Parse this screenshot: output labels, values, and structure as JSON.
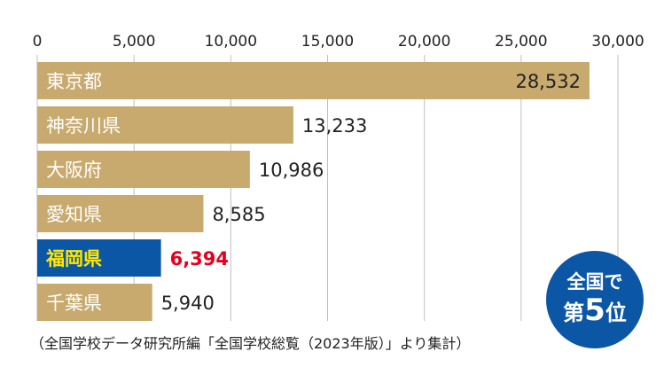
{
  "chart_data": {
    "type": "bar",
    "orientation": "horizontal",
    "categories": [
      "東京都",
      "神奈川県",
      "大阪府",
      "愛知県",
      "福岡県",
      "千葉県"
    ],
    "values": [
      28532,
      13233,
      10986,
      8585,
      6394,
      5940
    ],
    "value_labels": [
      "28,532",
      "13,233",
      "10,986",
      "8,585",
      "6,394",
      "5,940"
    ],
    "highlight_index": 4,
    "xlim": [
      0,
      30000
    ],
    "xticks": [
      0,
      5000,
      10000,
      15000,
      20000,
      25000,
      30000
    ],
    "xtick_labels": [
      "0",
      "5,000",
      "10,000",
      "15,000",
      "20,000",
      "25,000",
      "30,000"
    ],
    "grid": true,
    "legend": "none"
  },
  "colors": {
    "bar": "#c8aa6e",
    "highlight_bar": "#0b57a6",
    "highlight_label": "#ffe600",
    "highlight_value": "#e6001f",
    "grid": "#bfbfbf",
    "badge": "#0b57a6"
  },
  "caption": "（全国学校データ研究所編「全国学校総覧（2023年版）」より集計）",
  "badge": {
    "line1": "全国で",
    "line2_prefix": "第",
    "rank": "5",
    "line2_suffix": "位"
  }
}
